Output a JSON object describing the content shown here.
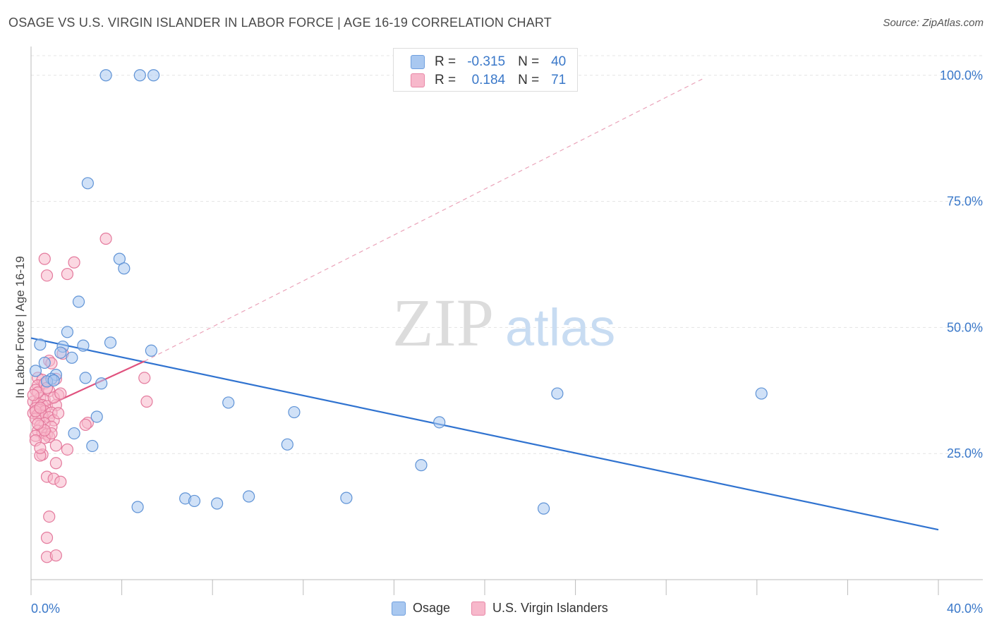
{
  "chart_data": {
    "type": "scatter",
    "title": "OSAGE VS U.S. VIRGIN ISLANDER IN LABOR FORCE | AGE 16-19 CORRELATION CHART",
    "source": "Source: ZipAtlas.com",
    "xlabel": "",
    "ylabel": "In Labor Force | Age 16-19",
    "xlim": [
      0,
      40
    ],
    "ylim": [
      0,
      105
    ],
    "x_tick_labels": [
      {
        "value": 0,
        "label": "0.0%"
      },
      {
        "value": 40,
        "label": "40.0%"
      }
    ],
    "y_tick_labels": [
      {
        "value": 25,
        "label": "25.0%"
      },
      {
        "value": 50,
        "label": "50.0%"
      },
      {
        "value": 75,
        "label": "75.0%"
      },
      {
        "value": 100,
        "label": "100.0%"
      }
    ],
    "watermark": {
      "zip": "ZIP",
      "atlas": "atlas"
    },
    "legend_stats": [
      {
        "r_label": "R =",
        "r_value": "-0.315",
        "n_label": "N =",
        "n_value": "40",
        "color": "#a9c8f0",
        "border": "#6f9fde"
      },
      {
        "r_label": "R =",
        "r_value": "0.184",
        "n_label": "N =",
        "n_value": "71",
        "color": "#f7b8cb",
        "border": "#e886a6"
      }
    ],
    "series": [
      {
        "name": "Osage",
        "fill": "#a9c8f0",
        "stroke": "#5f93d6",
        "line_color": "#3073d0",
        "trend": {
          "x0": 0.0,
          "y0": 47.9,
          "x1": 40.0,
          "y1": 9.9
        },
        "points": [
          [
            3.3,
            100
          ],
          [
            4.8,
            100
          ],
          [
            5.4,
            100
          ],
          [
            2.5,
            78.6
          ],
          [
            3.9,
            63.6
          ],
          [
            4.1,
            61.7
          ],
          [
            2.1,
            55.1
          ],
          [
            1.6,
            49.1
          ],
          [
            1.4,
            46.2
          ],
          [
            2.3,
            46.4
          ],
          [
            3.5,
            47.0
          ],
          [
            5.3,
            45.4
          ],
          [
            1.8,
            44.0
          ],
          [
            0.4,
            46.6
          ],
          [
            0.6,
            43.0
          ],
          [
            0.2,
            41.4
          ],
          [
            1.1,
            40.6
          ],
          [
            0.9,
            39.8
          ],
          [
            2.4,
            40.0
          ],
          [
            3.1,
            38.9
          ],
          [
            0.7,
            39.3
          ],
          [
            8.7,
            35.1
          ],
          [
            11.6,
            33.2
          ],
          [
            18.0,
            31.2
          ],
          [
            23.2,
            36.9
          ],
          [
            32.2,
            36.9
          ],
          [
            1.9,
            29.0
          ],
          [
            2.9,
            32.3
          ],
          [
            2.7,
            26.5
          ],
          [
            11.3,
            26.8
          ],
          [
            17.2,
            22.7
          ],
          [
            4.7,
            14.4
          ],
          [
            6.8,
            16.1
          ],
          [
            7.2,
            15.6
          ],
          [
            8.2,
            15.1
          ],
          [
            9.6,
            16.5
          ],
          [
            13.9,
            16.2
          ],
          [
            22.6,
            14.1
          ],
          [
            1.3,
            45.0
          ],
          [
            1.0,
            39.5
          ]
        ]
      },
      {
        "name": "U.S. Virgin Islanders",
        "fill": "#f7b8cb",
        "stroke": "#e47a9d",
        "line_color": "#e0527e",
        "trend": {
          "x0": 0.0,
          "y0": 33.0,
          "x1": 5.0,
          "y1": 43.3
        },
        "trend_ext": {
          "x0": 5.0,
          "y0": 43.3,
          "x1": 29.7,
          "y1": 99.5
        },
        "points": [
          [
            3.3,
            67.6
          ],
          [
            0.6,
            63.6
          ],
          [
            1.9,
            62.9
          ],
          [
            0.7,
            60.3
          ],
          [
            1.6,
            60.6
          ],
          [
            1.4,
            44.8
          ],
          [
            0.8,
            43.4
          ],
          [
            0.9,
            42.9
          ],
          [
            0.3,
            40.0
          ],
          [
            1.1,
            39.8
          ],
          [
            0.5,
            39.6
          ],
          [
            0.3,
            38.5
          ],
          [
            0.6,
            38.9
          ],
          [
            0.2,
            37.6
          ],
          [
            0.8,
            37.4
          ],
          [
            1.2,
            36.6
          ],
          [
            0.4,
            36.0
          ],
          [
            0.6,
            35.6
          ],
          [
            0.1,
            35.3
          ],
          [
            0.3,
            34.9
          ],
          [
            0.5,
            34.6
          ],
          [
            0.7,
            34.4
          ],
          [
            1.1,
            34.6
          ],
          [
            0.2,
            34.0
          ],
          [
            0.4,
            33.7
          ],
          [
            0.6,
            33.4
          ],
          [
            0.9,
            33.1
          ],
          [
            0.1,
            33.0
          ],
          [
            0.3,
            32.7
          ],
          [
            0.5,
            32.5
          ],
          [
            0.8,
            32.2
          ],
          [
            0.2,
            31.9
          ],
          [
            1.0,
            31.6
          ],
          [
            0.6,
            31.0
          ],
          [
            0.4,
            30.5
          ],
          [
            0.9,
            30.3
          ],
          [
            2.5,
            31.1
          ],
          [
            2.4,
            30.7
          ],
          [
            0.3,
            29.5
          ],
          [
            0.5,
            29.1
          ],
          [
            0.7,
            28.8
          ],
          [
            0.2,
            28.5
          ],
          [
            0.8,
            28.3
          ],
          [
            0.6,
            28.1
          ],
          [
            1.1,
            26.6
          ],
          [
            1.6,
            25.8
          ],
          [
            0.5,
            24.8
          ],
          [
            0.4,
            24.6
          ],
          [
            1.1,
            23.1
          ],
          [
            0.7,
            20.4
          ],
          [
            1.0,
            20.0
          ],
          [
            1.3,
            19.4
          ],
          [
            0.8,
            12.5
          ],
          [
            0.7,
            8.3
          ],
          [
            0.7,
            4.5
          ],
          [
            1.1,
            4.8
          ],
          [
            5.0,
            40.0
          ],
          [
            5.1,
            35.3
          ],
          [
            1.0,
            36.1
          ],
          [
            0.3,
            37.1
          ],
          [
            0.1,
            36.6
          ],
          [
            0.2,
            33.4
          ],
          [
            0.4,
            34.1
          ],
          [
            1.2,
            33.0
          ],
          [
            0.9,
            29.0
          ],
          [
            0.6,
            29.6
          ],
          [
            0.3,
            30.9
          ],
          [
            0.2,
            27.6
          ],
          [
            0.4,
            26.1
          ],
          [
            0.7,
            38.0
          ],
          [
            1.3,
            36.9
          ]
        ]
      }
    ]
  }
}
